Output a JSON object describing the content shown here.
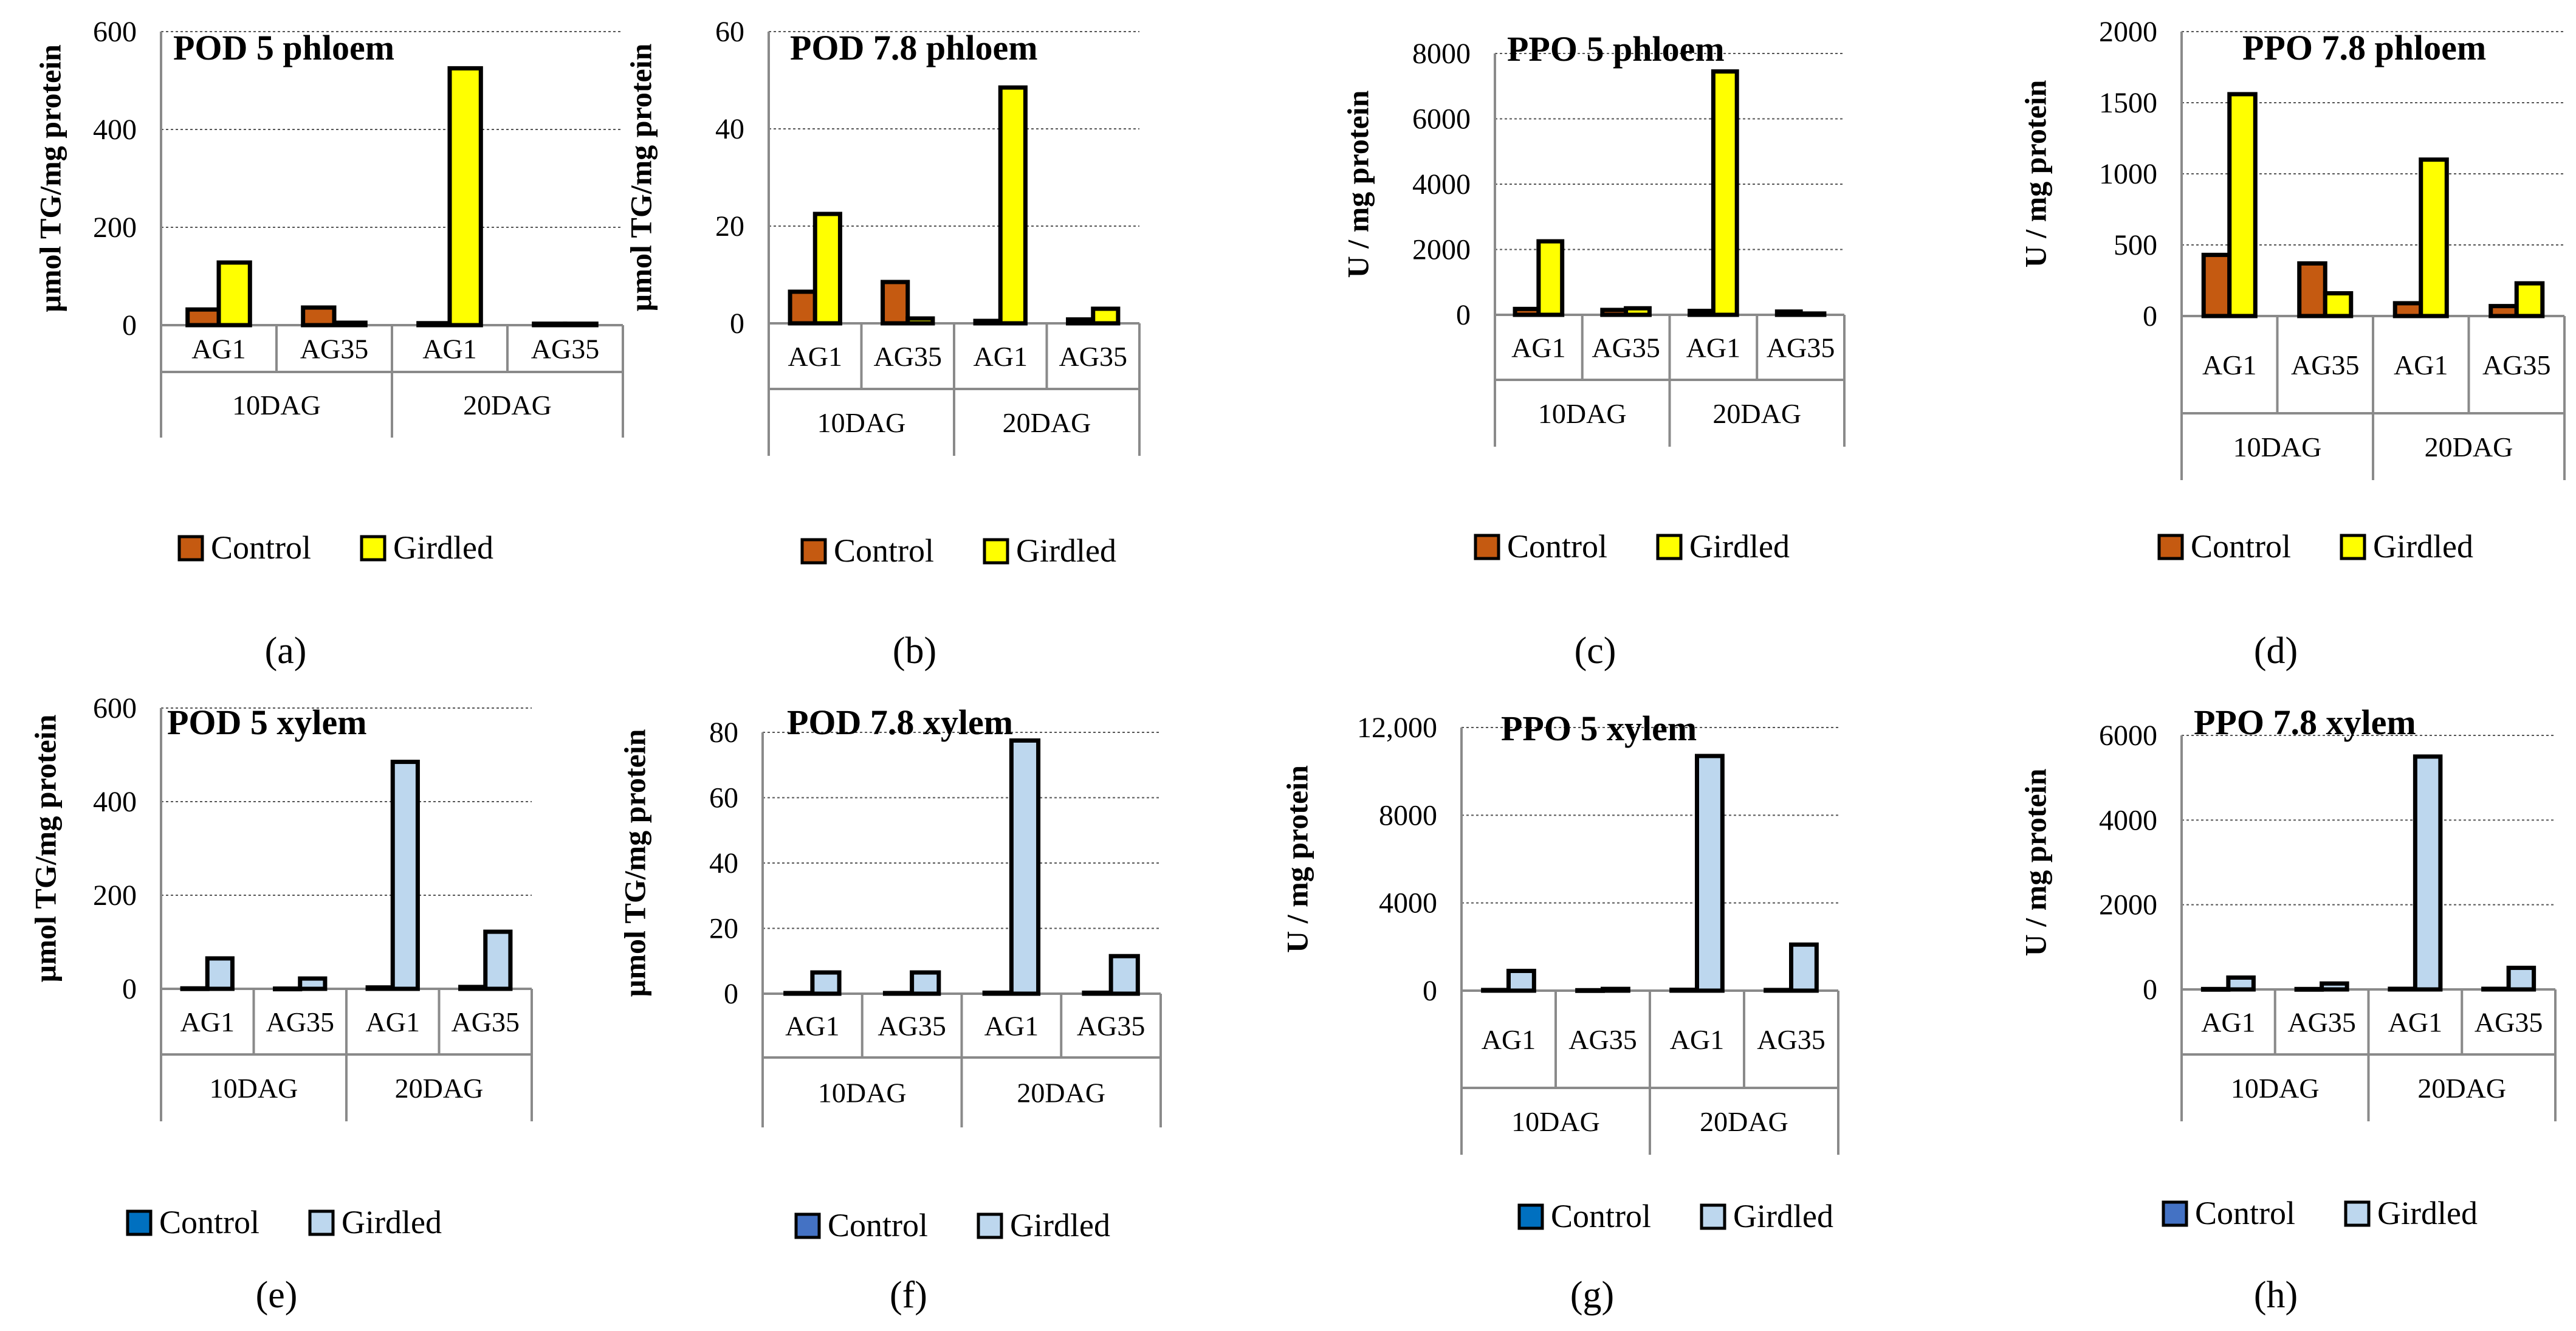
{
  "figure": {
    "colors": {
      "control_orange": "#C55A11",
      "girdled_yellow": "#FFFF00",
      "control_blue_dark": "#0070C0",
      "control_blue_light": "#4472C4",
      "girdled_blue": "#BDD7EE"
    }
  },
  "chart_data": [
    {
      "id": "a",
      "type": "bar",
      "panel_label": "(a)",
      "title": "POD 5 phloem",
      "ylabel": "µmol TG/mg protein",
      "ylim": [
        0,
        600
      ],
      "yticks": [
        "0",
        "200",
        "400",
        "600"
      ],
      "groups": [
        "10DAG",
        "20DAG"
      ],
      "categories": [
        "AG1",
        "AG35",
        "AG1",
        "AG35"
      ],
      "series": [
        {
          "name": "Control",
          "color": "#C55A11",
          "values": [
            32,
            36,
            4,
            3
          ]
        },
        {
          "name": "Girdled",
          "color": "#FFFF00",
          "values": [
            128,
            5,
            525,
            3
          ]
        }
      ],
      "legend": [
        "Control",
        "Girdled"
      ],
      "legend_position": "bottom"
    },
    {
      "id": "b",
      "type": "bar",
      "panel_label": "(b)",
      "title": "POD  7.8 phloem",
      "ylabel": "µmol TG/mg protein",
      "ylim": [
        0,
        60
      ],
      "yticks": [
        "0",
        "20",
        "40",
        "60"
      ],
      "groups": [
        "10DAG",
        "20DAG"
      ],
      "categories": [
        "AG1",
        "AG35",
        "AG1",
        "AG35"
      ],
      "series": [
        {
          "name": "Control",
          "color": "#C55A11",
          "values": [
            6.5,
            8.5,
            0.5,
            0.8
          ]
        },
        {
          "name": "Girdled",
          "color": "#FFFF00",
          "values": [
            22.5,
            1,
            48.5,
            3
          ]
        }
      ],
      "legend": [
        "Control",
        "Girdled"
      ],
      "legend_position": "bottom"
    },
    {
      "id": "c",
      "type": "bar",
      "panel_label": "(c)",
      "title": "PPO 5 phloem",
      "ylabel": "U / mg protein",
      "ylim": [
        0,
        8000
      ],
      "yticks": [
        "0",
        "2000",
        "4000",
        "6000",
        "8000"
      ],
      "groups": [
        "10DAG",
        "20DAG"
      ],
      "categories": [
        "AG1",
        "AG35",
        "AG1",
        "AG35"
      ],
      "series": [
        {
          "name": "Control",
          "color": "#C55A11",
          "values": [
            180,
            150,
            120,
            100
          ]
        },
        {
          "name": "Girdled",
          "color": "#FFFF00",
          "values": [
            2250,
            200,
            7450,
            40
          ]
        }
      ],
      "legend": [
        "Control",
        "Girdled"
      ],
      "legend_position": "bottom"
    },
    {
      "id": "d",
      "type": "bar",
      "panel_label": "(d)",
      "title": "PPO 7.8 phloem",
      "ylabel": "U / mg protein",
      "ylim": [
        0,
        2000
      ],
      "yticks": [
        "0",
        "500",
        "1000",
        "1500",
        "2000"
      ],
      "groups": [
        "10DAG",
        "20DAG"
      ],
      "categories": [
        "AG1",
        "AG35",
        "AG1",
        "AG35"
      ],
      "series": [
        {
          "name": "Control",
          "color": "#C55A11",
          "values": [
            430,
            370,
            90,
            70
          ]
        },
        {
          "name": "Girdled",
          "color": "#FFFF00",
          "values": [
            1560,
            160,
            1100,
            230
          ]
        }
      ],
      "legend": [
        "Control",
        "Girdled"
      ],
      "legend_position": "bottom"
    },
    {
      "id": "e",
      "type": "bar",
      "panel_label": "(e)",
      "title": "POD 5 xylem",
      "ylabel": "µmol TG/mg protein",
      "ylim": [
        0,
        600
      ],
      "yticks": [
        "0",
        "200",
        "400",
        "600"
      ],
      "groups": [
        "10DAG",
        "20DAG"
      ],
      "categories": [
        "AG1",
        "AG35",
        "AG1",
        "AG35"
      ],
      "series": [
        {
          "name": "Control",
          "color": "#0070C0",
          "values": [
            1,
            0.5,
            3,
            4
          ]
        },
        {
          "name": "Girdled",
          "color": "#BDD7EE",
          "values": [
            65,
            22,
            485,
            122
          ]
        }
      ],
      "legend": [
        "Control",
        "Girdled"
      ],
      "legend_position": "bottom"
    },
    {
      "id": "f",
      "type": "bar",
      "panel_label": "(f)",
      "title": "POD 7.8 xylem",
      "ylabel": "µmol TG/mg protein",
      "ylim": [
        0,
        80
      ],
      "yticks": [
        "0",
        "20",
        "40",
        "60",
        "80"
      ],
      "groups": [
        "10DAG",
        "20DAG"
      ],
      "categories": [
        "AG1",
        "AG35",
        "AG1",
        "AG35"
      ],
      "series": [
        {
          "name": "Control",
          "color": "#4472C4",
          "values": [
            0.2,
            0.2,
            0.3,
            0.3
          ]
        },
        {
          "name": "Girdled",
          "color": "#BDD7EE",
          "values": [
            6.5,
            6.5,
            77.5,
            11.5
          ]
        }
      ],
      "legend": [
        "Control",
        "Girdled"
      ],
      "legend_position": "bottom"
    },
    {
      "id": "g",
      "type": "bar",
      "panel_label": "(g)",
      "title": "PPO 5 xylem",
      "ylabel": "U / mg protein",
      "ylim": [
        0,
        12000
      ],
      "yticks": [
        "0",
        "4000",
        "8000",
        "12,000"
      ],
      "groups": [
        "10DAG",
        "20DAG"
      ],
      "categories": [
        "AG1",
        "AG35",
        "AG1",
        "AG35"
      ],
      "series": [
        {
          "name": "Control",
          "color": "#0070C0",
          "values": [
            30,
            20,
            40,
            30
          ]
        },
        {
          "name": "Girdled",
          "color": "#BDD7EE",
          "values": [
            900,
            80,
            10700,
            2100
          ]
        }
      ],
      "legend": [
        "Control",
        "Girdled"
      ],
      "legend_position": "bottom"
    },
    {
      "id": "h",
      "type": "bar",
      "panel_label": "(h)",
      "title": "PPO 7.8 xylem",
      "ylabel": "U / mg protein",
      "ylim": [
        0,
        6000
      ],
      "yticks": [
        "0",
        "2000",
        "4000",
        "6000"
      ],
      "groups": [
        "10DAG",
        "20DAG"
      ],
      "categories": [
        "AG1",
        "AG35",
        "AG1",
        "AG35"
      ],
      "series": [
        {
          "name": "Control",
          "color": "#4472C4",
          "values": [
            10,
            10,
            15,
            15
          ]
        },
        {
          "name": "Girdled",
          "color": "#BDD7EE",
          "values": [
            280,
            140,
            5500,
            510
          ]
        }
      ],
      "legend": [
        "Control",
        "Girdled"
      ],
      "legend_position": "bottom"
    }
  ]
}
